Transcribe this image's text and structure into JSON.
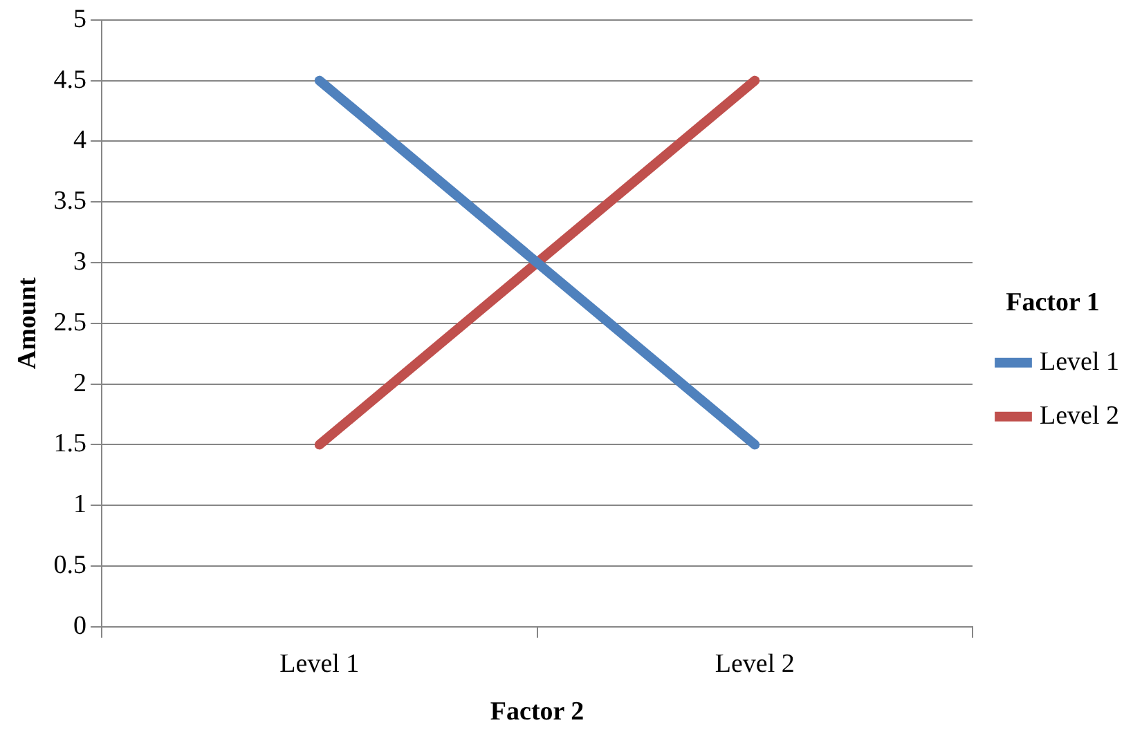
{
  "chart_data": {
    "type": "line",
    "xlabel": "Factor 2",
    "ylabel": "Amount",
    "legend_title": "Factor 1",
    "categories": [
      "Level 1",
      "Level 2"
    ],
    "series": [
      {
        "name": "Level 1",
        "color": "#4f81bd",
        "values": [
          4.5,
          1.5
        ]
      },
      {
        "name": "Level 2",
        "color": "#c0504d",
        "values": [
          1.5,
          4.5
        ]
      }
    ],
    "ylim": [
      0,
      5
    ],
    "yticks": [
      0,
      0.5,
      1,
      1.5,
      2,
      2.5,
      3,
      3.5,
      4,
      4.5,
      5
    ],
    "grid": "y",
    "legend": "right",
    "marker": "none",
    "line_style": "solid"
  }
}
